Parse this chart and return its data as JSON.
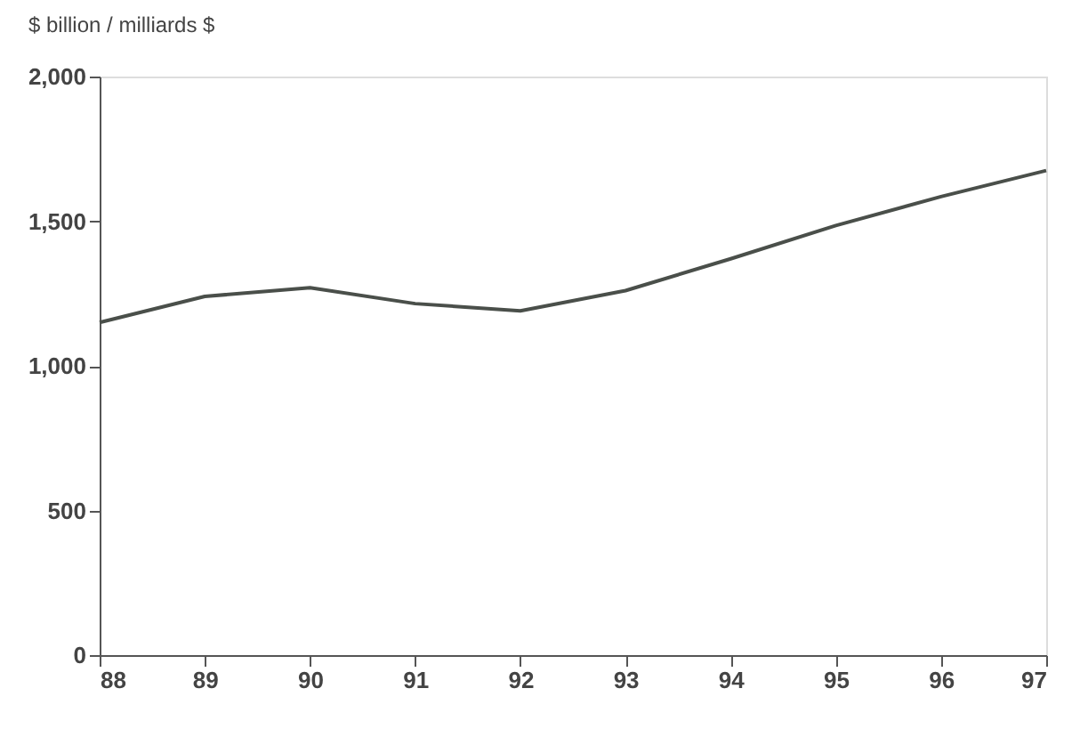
{
  "chart_data": {
    "type": "line",
    "ylabel": "$ billion / milliards $",
    "categories": [
      "88",
      "89",
      "90",
      "91",
      "92",
      "93",
      "94",
      "95",
      "96",
      "97"
    ],
    "series": [
      {
        "color": "#4a4f4a",
        "values": [
          1150,
          1240,
          1270,
          1215,
          1190,
          1260,
          1370,
          1485,
          1585,
          1675
        ]
      }
    ],
    "ylim": [
      0,
      2000
    ],
    "yticks": [
      0,
      500,
      {
        "value": 1000,
        "label": "1,000"
      },
      {
        "value": 1500,
        "label": "1,500"
      },
      {
        "value": 2000,
        "label": "2,000"
      }
    ],
    "grid": false,
    "legend": false,
    "marker": "none",
    "line_style": "solid"
  }
}
